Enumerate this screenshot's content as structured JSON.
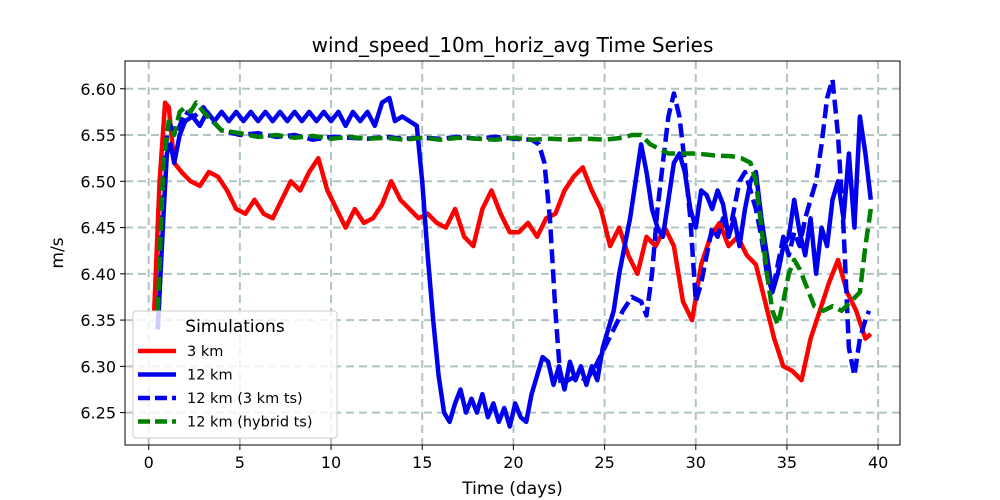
{
  "chart_data": {
    "type": "line",
    "title": "wind_speed_10m_horiz_avg Time Series",
    "xlabel": "Time (days)",
    "ylabel": "m/s",
    "xlim": [
      -1.3,
      41.2
    ],
    "ylim": [
      6.215,
      6.63
    ],
    "xticks": [
      0,
      5,
      10,
      15,
      20,
      25,
      30,
      35,
      40
    ],
    "yticks": [
      6.25,
      6.3,
      6.35,
      6.4,
      6.45,
      6.5,
      6.55,
      6.6
    ],
    "ytick_labels": [
      "6.25",
      "6.30",
      "6.35",
      "6.40",
      "6.45",
      "6.50",
      "6.55",
      "6.60"
    ],
    "grid": true,
    "legend": {
      "title": "Simulations",
      "position": "lower-left"
    },
    "series": [
      {
        "name": "3 km",
        "color": "#ff0000",
        "dash": "solid",
        "x": [
          0.3,
          0.6,
          0.9,
          1.1,
          1.4,
          1.8,
          2.3,
          2.8,
          3.3,
          3.8,
          4.3,
          4.8,
          5.3,
          5.8,
          6.3,
          6.8,
          7.3,
          7.8,
          8.3,
          8.8,
          9.3,
          9.8,
          10.3,
          10.8,
          11.3,
          11.8,
          12.3,
          12.8,
          13.3,
          13.8,
          14.3,
          14.8,
          15.3,
          15.8,
          16.3,
          16.8,
          17.3,
          17.8,
          18.3,
          18.8,
          19.3,
          19.8,
          20.3,
          20.8,
          21.3,
          21.8,
          22.3,
          22.8,
          23.3,
          23.8,
          24.3,
          24.8,
          25.3,
          25.8,
          26.3,
          26.8,
          27.3,
          27.8,
          28.3,
          28.8,
          29.3,
          29.8,
          30.3,
          30.8,
          31.3,
          31.8,
          32.3,
          32.8,
          33.3,
          33.8,
          34.3,
          34.8,
          35.3,
          35.8,
          36.3,
          36.8,
          37.3,
          37.8,
          38.3,
          38.8,
          39.3,
          39.6
        ],
        "y": [
          6.36,
          6.5,
          6.585,
          6.58,
          6.52,
          6.51,
          6.5,
          6.495,
          6.51,
          6.505,
          6.49,
          6.47,
          6.465,
          6.48,
          6.465,
          6.46,
          6.48,
          6.5,
          6.49,
          6.51,
          6.525,
          6.49,
          6.47,
          6.45,
          6.47,
          6.455,
          6.46,
          6.475,
          6.5,
          6.48,
          6.47,
          6.46,
          6.465,
          6.455,
          6.45,
          6.47,
          6.44,
          6.43,
          6.47,
          6.49,
          6.465,
          6.445,
          6.445,
          6.455,
          6.44,
          6.46,
          6.465,
          6.49,
          6.505,
          6.515,
          6.49,
          6.47,
          6.43,
          6.45,
          6.42,
          6.4,
          6.44,
          6.43,
          6.45,
          6.43,
          6.37,
          6.35,
          6.41,
          6.44,
          6.455,
          6.43,
          6.44,
          6.42,
          6.41,
          6.37,
          6.33,
          6.3,
          6.295,
          6.285,
          6.33,
          6.36,
          6.39,
          6.415,
          6.38,
          6.36,
          6.33,
          6.335
        ]
      },
      {
        "name": "12 km",
        "color": "#0000ee",
        "dash": "solid",
        "x": [
          0.5,
          0.8,
          1.0,
          1.2,
          1.4,
          1.7,
          2.0,
          2.4,
          2.8,
          3.2,
          3.6,
          4.0,
          4.4,
          4.8,
          5.2,
          5.6,
          6.0,
          6.4,
          6.8,
          7.2,
          7.6,
          8.0,
          8.4,
          8.8,
          9.2,
          9.6,
          10.0,
          10.4,
          10.8,
          11.2,
          11.6,
          12.0,
          12.4,
          12.8,
          13.2,
          13.5,
          13.9,
          14.3,
          14.7,
          15.0,
          15.3,
          15.6,
          15.9,
          16.2,
          16.5,
          16.8,
          17.1,
          17.4,
          17.7,
          18.0,
          18.3,
          18.6,
          18.9,
          19.2,
          19.5,
          19.8,
          20.1,
          20.4,
          20.7,
          21.0,
          21.3,
          21.6,
          21.9,
          22.2,
          22.5,
          22.8,
          23.1,
          23.4,
          23.7,
          24.0,
          24.3,
          24.6,
          24.9,
          25.2,
          25.5,
          25.8,
          26.1,
          26.4,
          26.7,
          27.0,
          27.3,
          27.6,
          27.9,
          28.2,
          28.5,
          28.8,
          29.1,
          29.4,
          29.7,
          30.0,
          30.3,
          30.6,
          30.9,
          31.2,
          31.5,
          31.8,
          32.1,
          32.4,
          32.7,
          33.0,
          33.3,
          33.6,
          33.9,
          34.2,
          34.5,
          34.8,
          35.1,
          35.4,
          35.7,
          36.0,
          36.3,
          36.6,
          36.9,
          37.2,
          37.5,
          37.8,
          38.1,
          38.4,
          38.7,
          39.0,
          39.3,
          39.6
        ],
        "y": [
          6.34,
          6.46,
          6.53,
          6.54,
          6.52,
          6.55,
          6.565,
          6.57,
          6.56,
          6.575,
          6.565,
          6.575,
          6.565,
          6.575,
          6.565,
          6.575,
          6.565,
          6.575,
          6.565,
          6.575,
          6.565,
          6.575,
          6.565,
          6.575,
          6.565,
          6.575,
          6.565,
          6.575,
          6.56,
          6.575,
          6.565,
          6.575,
          6.56,
          6.585,
          6.59,
          6.565,
          6.57,
          6.565,
          6.56,
          6.5,
          6.42,
          6.35,
          6.29,
          6.25,
          6.24,
          6.26,
          6.275,
          6.25,
          6.265,
          6.25,
          6.27,
          6.245,
          6.26,
          6.24,
          6.255,
          6.235,
          6.26,
          6.245,
          6.24,
          6.27,
          6.29,
          6.31,
          6.305,
          6.28,
          6.3,
          6.275,
          6.305,
          6.285,
          6.3,
          6.28,
          6.3,
          6.285,
          6.32,
          6.34,
          6.36,
          6.4,
          6.43,
          6.46,
          6.5,
          6.54,
          6.51,
          6.47,
          6.45,
          6.44,
          6.48,
          6.52,
          6.53,
          6.51,
          6.47,
          6.45,
          6.49,
          6.485,
          6.47,
          6.49,
          6.475,
          6.44,
          6.46,
          6.43,
          6.47,
          6.5,
          6.51,
          6.46,
          6.42,
          6.38,
          6.4,
          6.43,
          6.44,
          6.48,
          6.445,
          6.42,
          6.46,
          6.4,
          6.45,
          6.43,
          6.48,
          6.5,
          6.46,
          6.53,
          6.45,
          6.57,
          6.53,
          6.48
        ]
      },
      {
        "name": "12 km (3 km ts)",
        "color": "#0000ee",
        "dash": "dashed",
        "x": [
          0.5,
          0.8,
          1.0,
          1.2,
          1.5,
          2.0,
          2.5,
          3.0,
          3.5,
          4.0,
          5.0,
          6.0,
          7.0,
          8.0,
          9.0,
          10.0,
          11.0,
          12.0,
          13.0,
          14.0,
          15.0,
          16.0,
          17.0,
          18.0,
          19.0,
          20.0,
          21.0,
          21.4,
          21.7,
          22.0,
          22.3,
          22.6,
          23.0,
          23.5,
          24.0,
          24.5,
          25.0,
          25.5,
          26.0,
          26.5,
          27.0,
          27.3,
          27.6,
          27.9,
          28.2,
          28.5,
          28.8,
          29.1,
          29.4,
          29.7,
          30.0,
          30.3,
          30.6,
          30.9,
          31.2,
          31.5,
          31.8,
          32.1,
          32.4,
          32.7,
          33.0,
          33.3,
          33.6,
          33.9,
          34.2,
          34.5,
          34.8,
          35.1,
          35.4,
          35.7,
          36.0,
          36.3,
          36.6,
          36.9,
          37.2,
          37.5,
          37.8,
          38.1,
          38.4,
          38.7,
          39.0,
          39.3,
          39.5
        ],
        "y": [
          6.34,
          6.48,
          6.55,
          6.56,
          6.55,
          6.575,
          6.57,
          6.58,
          6.565,
          6.555,
          6.55,
          6.552,
          6.548,
          6.55,
          6.545,
          6.548,
          6.547,
          6.546,
          6.548,
          6.546,
          6.547,
          6.546,
          6.548,
          6.546,
          6.548,
          6.546,
          6.545,
          6.54,
          6.52,
          6.46,
          6.36,
          6.28,
          6.285,
          6.29,
          6.285,
          6.3,
          6.32,
          6.34,
          6.36,
          6.375,
          6.37,
          6.355,
          6.4,
          6.47,
          6.52,
          6.57,
          6.595,
          6.57,
          6.52,
          6.46,
          6.37,
          6.39,
          6.42,
          6.45,
          6.44,
          6.46,
          6.44,
          6.47,
          6.5,
          6.51,
          6.49,
          6.47,
          6.44,
          6.4,
          6.38,
          6.41,
          6.44,
          6.42,
          6.445,
          6.43,
          6.46,
          6.48,
          6.5,
          6.54,
          6.59,
          6.61,
          6.55,
          6.45,
          6.32,
          6.29,
          6.33,
          6.35,
          6.36
        ]
      },
      {
        "name": "12 km (hybrid ts)",
        "color": "#008000",
        "dash": "dashed",
        "x": [
          0.5,
          0.8,
          1.1,
          1.4,
          1.7,
          2.0,
          2.3,
          2.6,
          3.0,
          3.5,
          4.0,
          5.0,
          6.0,
          7.0,
          8.0,
          9.0,
          10.0,
          11.0,
          12.0,
          13.0,
          14.0,
          15.0,
          16.0,
          17.0,
          18.0,
          19.0,
          20.0,
          21.0,
          22.0,
          23.0,
          24.0,
          25.0,
          26.0,
          26.5,
          27.0,
          27.5,
          28.0,
          28.5,
          29.0,
          30.0,
          31.0,
          32.0,
          32.5,
          33.0,
          33.3,
          33.6,
          33.9,
          34.2,
          34.5,
          34.8,
          35.1,
          35.4,
          35.7,
          36.0,
          36.5,
          37.0,
          37.5,
          38.0,
          38.5,
          39.0,
          39.3,
          39.6
        ],
        "y": [
          6.36,
          6.52,
          6.565,
          6.55,
          6.575,
          6.58,
          6.575,
          6.585,
          6.575,
          6.565,
          6.555,
          6.552,
          6.548,
          6.55,
          6.547,
          6.549,
          6.546,
          6.548,
          6.546,
          6.547,
          6.545,
          6.547,
          6.545,
          6.547,
          6.546,
          6.545,
          6.547,
          6.545,
          6.546,
          6.545,
          6.546,
          6.545,
          6.547,
          6.55,
          6.55,
          6.54,
          6.535,
          6.53,
          6.53,
          6.53,
          6.528,
          6.527,
          6.525,
          6.52,
          6.5,
          6.45,
          6.4,
          6.36,
          6.345,
          6.37,
          6.4,
          6.415,
          6.405,
          6.39,
          6.365,
          6.36,
          6.365,
          6.36,
          6.37,
          6.38,
          6.43,
          6.47
        ]
      }
    ]
  }
}
